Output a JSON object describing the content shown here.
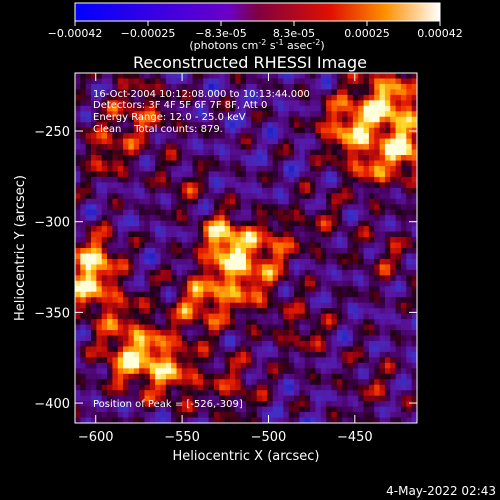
{
  "chart_data": {
    "type": "heatmap",
    "title": "Reconstructed RHESSI Image",
    "colorbar": {
      "range": [
        -0.00042,
        0.00042
      ],
      "tick_labels": [
        "-0.00042",
        "-0.00025",
        "-8.3e-05",
        "8.3e-05",
        "0.00025",
        "0.00042"
      ],
      "unit_main": "(photons cm",
      "unit_exp1": "-2",
      "unit_mid": " s",
      "unit_exp2": "-1",
      "unit_mid2": " asec",
      "unit_exp3": "-2",
      "unit_close": ")"
    },
    "xlabel": "Heliocentric X (arcsec)",
    "ylabel": "Heliocentric Y (arcsec)",
    "xlim": [
      -612,
      -414
    ],
    "ylim": [
      -411,
      -218
    ],
    "x_ticks": [
      -600,
      -550,
      -500,
      -450
    ],
    "x_tick_labels": [
      "−600",
      "−550",
      "−500",
      "−450"
    ],
    "y_ticks": [
      -250,
      -300,
      -350,
      -400
    ],
    "y_tick_labels": [
      "−250",
      "−300",
      "−350",
      "−400"
    ],
    "annotations": [
      "16-Oct-2004 10:12:08.000 to 10:13:44.000",
      "Detectors: 3F 4F 5F 6F 7F 8F, Att 0",
      "Energy Range: 12.0 - 25.0 keV",
      "Clean    Total counts: 879.",
      "Position of Peak = [-526,-309]"
    ],
    "peak": [
      -526,
      -309
    ],
    "grid": false
  },
  "footer": {
    "timestamp": "4-May-2022 02:43"
  }
}
